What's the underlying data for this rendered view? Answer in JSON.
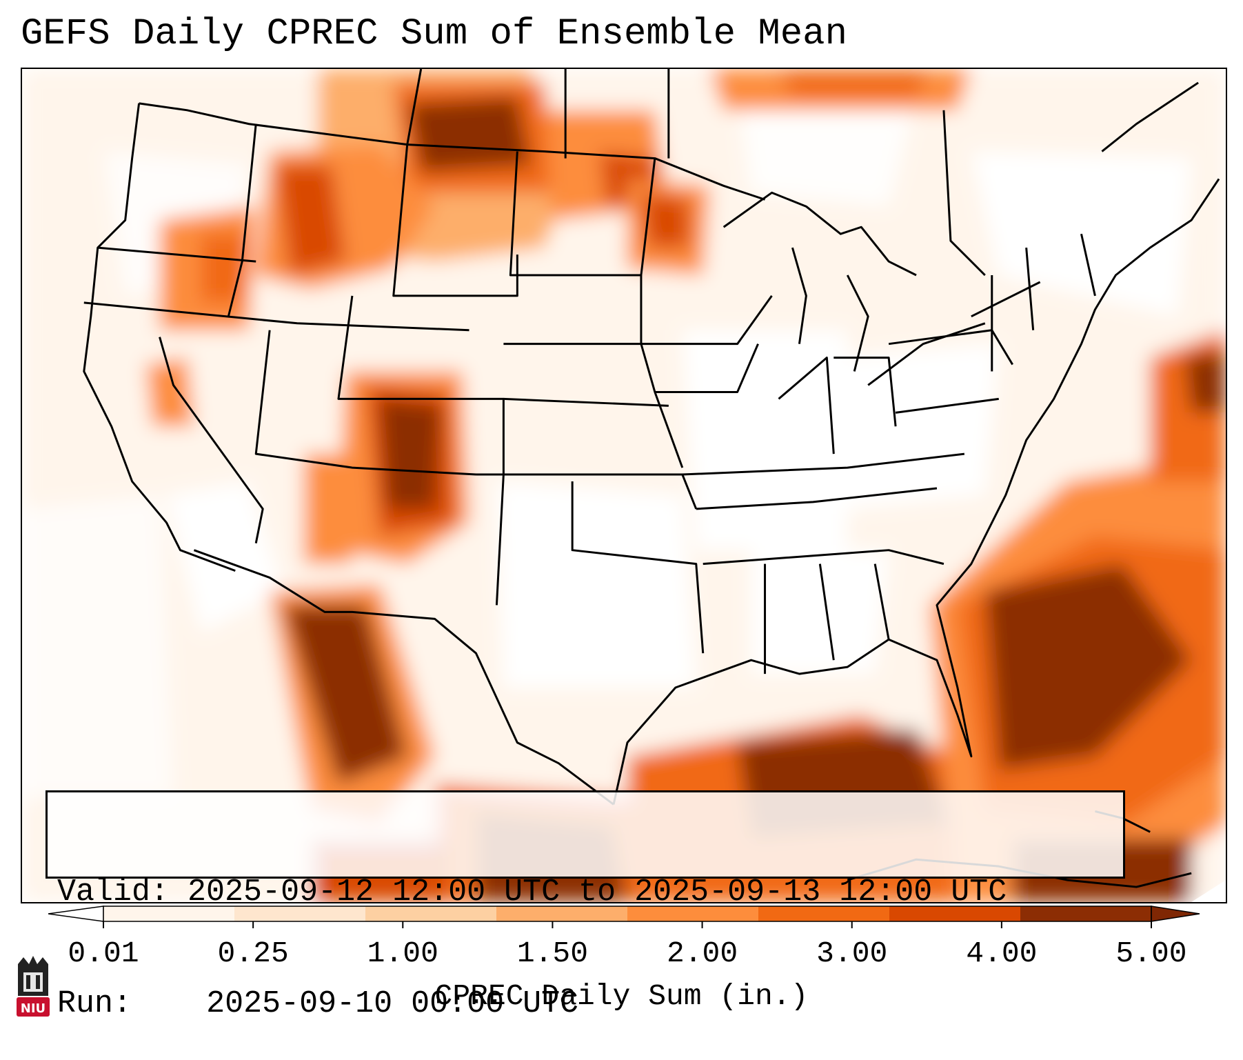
{
  "title": "GEFS Daily CPREC Sum of Ensemble Mean",
  "info": {
    "valid_label": "Valid:",
    "valid_value": "2025-09-12 12:00 UTC to 2025-09-13 12:00 UTC",
    "run_label": "Run:",
    "run_value": "2025-09-10 00:00 UTC"
  },
  "colorbar": {
    "title": "CPREC Daily Sum (in.)",
    "ticks": [
      "0.01",
      "0.25",
      "1.00",
      "1.50",
      "2.00",
      "3.00",
      "4.00",
      "5.00"
    ],
    "colors": [
      "#fff5eb",
      "#fee6ce",
      "#fdd0a2",
      "#fdae6b",
      "#fd8d3c",
      "#f16913",
      "#d94801",
      "#8c2d04"
    ],
    "under_color": "#ffffff",
    "over_color": "#7f2704"
  },
  "logo": {
    "text": "NIU",
    "color": "#c8102e"
  }
}
